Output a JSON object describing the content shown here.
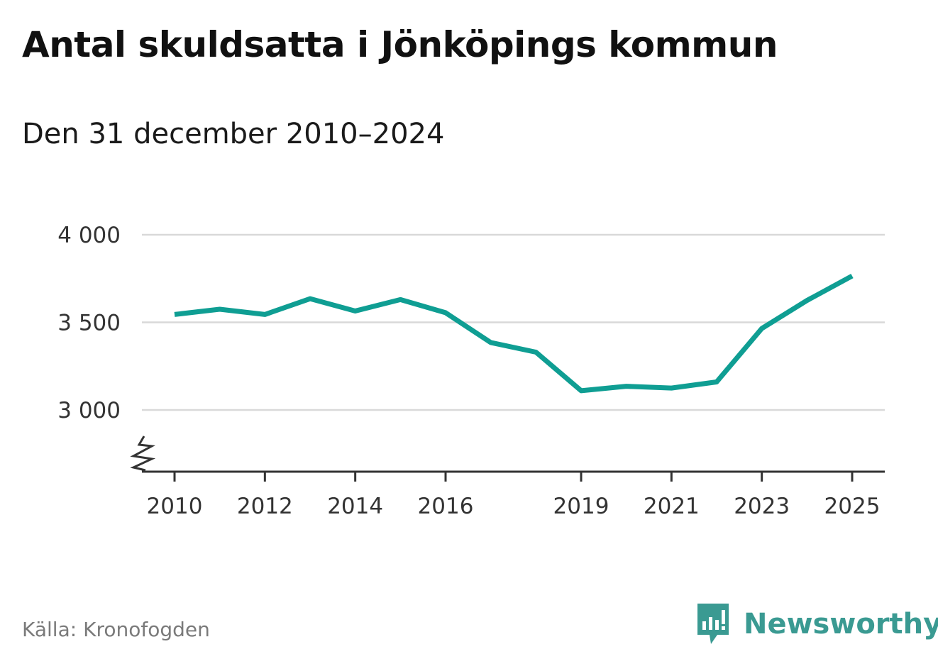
{
  "title": "Antal skuldsatta i Jönköpings kommun",
  "subtitle": "Den 31 december 2010–2024",
  "source": "Källa: Kronofogden",
  "brand": {
    "name": "Newsworthy",
    "icon": "newsworthy-logo-icon",
    "color": "#3a9a92"
  },
  "colors": {
    "line": "#0f9e93",
    "grid": "#d9d9d9",
    "axis": "#333333"
  },
  "chart_data": {
    "type": "line",
    "title": "Antal skuldsatta i Jönköpings kommun",
    "subtitle": "Den 31 december 2010–2024",
    "xlabel": "",
    "ylabel": "",
    "xlim": [
      2010,
      2025
    ],
    "ylim": [
      2650,
      4000
    ],
    "y_axis_break": true,
    "grid": true,
    "x_ticks": [
      2010,
      2012,
      2014,
      2016,
      2019,
      2021,
      2023,
      2025
    ],
    "x_tick_labels": [
      "2010",
      "2012",
      "2014",
      "2016",
      "2019",
      "2021",
      "2023",
      "2025"
    ],
    "y_ticks": [
      3000,
      3500,
      4000
    ],
    "y_tick_labels": [
      "3 000",
      "3 500",
      "4 000"
    ],
    "series": [
      {
        "x": [
          2010,
          2011,
          2012,
          2013,
          2014,
          2015,
          2016,
          2017,
          2018,
          2019,
          2020,
          2021,
          2022,
          2023,
          2024,
          2025
        ],
        "values": [
          3545,
          3575,
          3545,
          3635,
          3565,
          3630,
          3555,
          3385,
          3330,
          3110,
          3135,
          3125,
          3160,
          3465,
          3625,
          3765
        ]
      }
    ]
  }
}
